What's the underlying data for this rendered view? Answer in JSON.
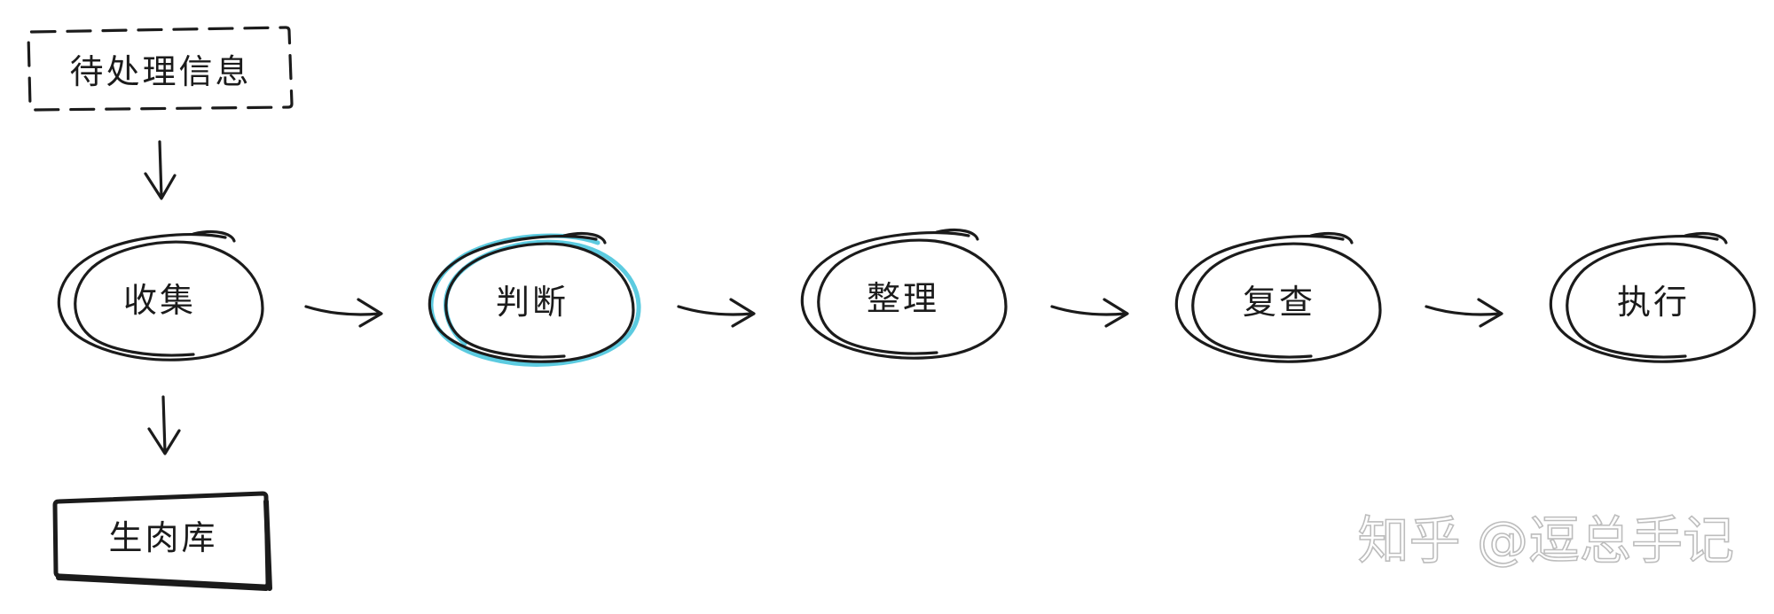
{
  "source_box": {
    "label": "待处理信息"
  },
  "store_box": {
    "label": "生肉库"
  },
  "stages": [
    {
      "id": "collect",
      "label": "收集",
      "highlighted": false
    },
    {
      "id": "judge",
      "label": "判断",
      "highlighted": true
    },
    {
      "id": "organize",
      "label": "整理",
      "highlighted": false
    },
    {
      "id": "review",
      "label": "复查",
      "highlighted": false
    },
    {
      "id": "execute",
      "label": "执行",
      "highlighted": false
    }
  ],
  "watermark": {
    "text": "知乎 @逗总手记"
  },
  "colors": {
    "ink": "#1b1b1b",
    "highlight": "#5ccbe0",
    "watermark": "#bdbdbd"
  }
}
